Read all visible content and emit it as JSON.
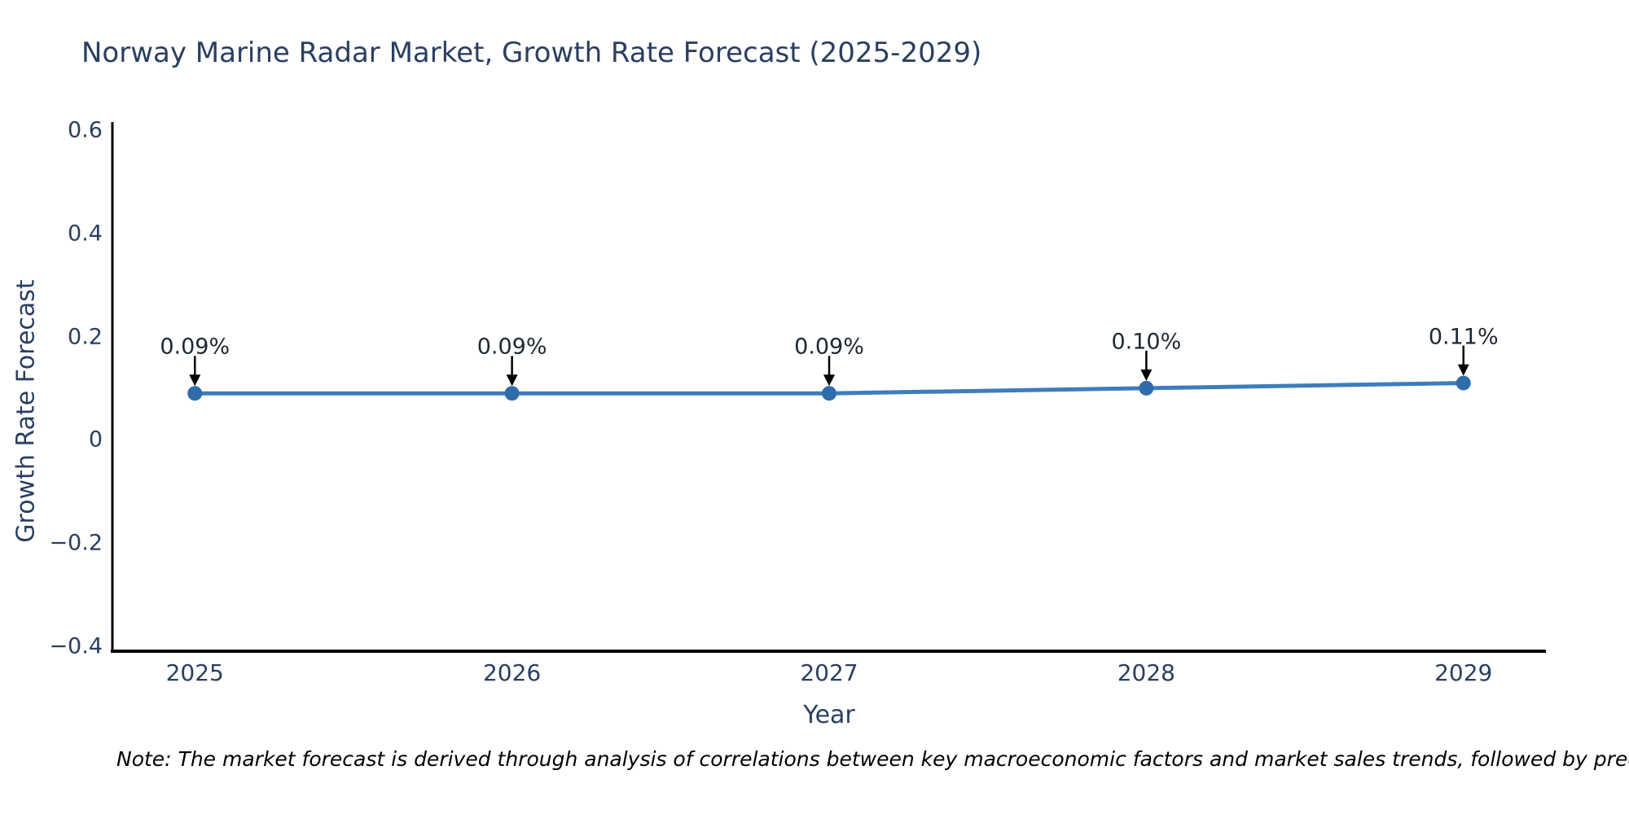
{
  "note": "Note: The market forecast is derived through analysis of correlations between key macroeconomic factors and market sales trends, followed by predictive modeling to project future sa",
  "chart_data": {
    "type": "line",
    "title": "Norway Marine Radar Market, Growth Rate Forecast (2025-2029)",
    "xlabel": "Year",
    "ylabel": "Growth Rate Forecast",
    "x": [
      2025,
      2026,
      2027,
      2028,
      2029
    ],
    "y": [
      0.09,
      0.09,
      0.09,
      0.1,
      0.11
    ],
    "point_labels": [
      "0.09%",
      "0.09%",
      "0.09%",
      "0.10%",
      "0.11%"
    ],
    "xticks": [
      2025,
      2026,
      2027,
      2028,
      2029
    ],
    "yticks": [
      0.6,
      0.4,
      0.2,
      0,
      -0.2,
      -0.4
    ],
    "ytick_labels": [
      "0.6",
      "0.4",
      "0.2",
      "0",
      "−0.2",
      "−0.4"
    ],
    "xtick_labels": [
      "2025",
      "2026",
      "2027",
      "2028",
      "2029"
    ],
    "xlim": [
      2024.74,
      2029.26
    ],
    "ylim": [
      -0.41,
      0.616
    ],
    "grid": false,
    "legend": "none",
    "line_color": "#3d7dbc",
    "marker_color": "#2f6cab",
    "axis_line_color": "#000000",
    "arrow_color": "#000000",
    "text_color": "#2a3f5f"
  }
}
